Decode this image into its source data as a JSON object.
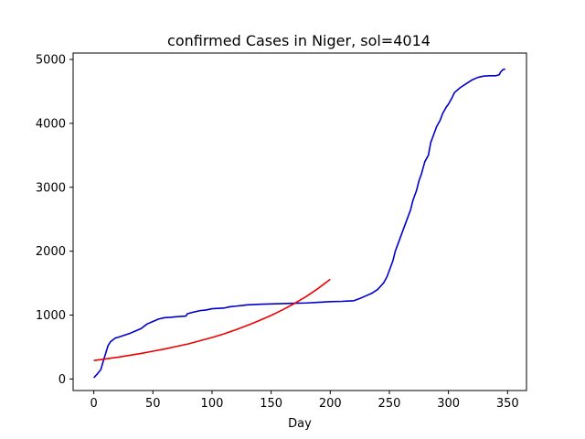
{
  "chart_data": {
    "type": "line",
    "title": "confirmed Cases in Niger, sol=4014",
    "xlabel": "Day",
    "ylabel": "",
    "xlim": [
      -17.5,
      366
    ],
    "ylim": [
      -180,
      5100
    ],
    "xticks": [
      0,
      50,
      100,
      150,
      200,
      250,
      300,
      350
    ],
    "yticks": [
      0,
      1000,
      2000,
      3000,
      4000,
      5000
    ],
    "grid": false,
    "legend": "none",
    "series": [
      {
        "color": "#0000cc",
        "x": [
          0,
          3,
          6,
          8,
          10,
          12,
          14,
          16,
          18,
          20,
          25,
          30,
          35,
          40,
          45,
          50,
          55,
          60,
          65,
          70,
          78,
          79,
          85,
          90,
          95,
          100,
          110,
          115,
          120,
          125,
          130,
          140,
          150,
          160,
          170,
          180,
          190,
          200,
          210,
          220,
          225,
          230,
          235,
          240,
          245,
          248,
          250,
          253,
          255,
          258,
          260,
          263,
          265,
          268,
          270,
          273,
          275,
          277,
          280,
          283,
          285,
          287,
          290,
          293,
          295,
          298,
          300,
          303,
          305,
          310,
          315,
          320,
          325,
          330,
          335,
          340,
          343,
          344,
          346,
          348
        ],
        "y": [
          20,
          80,
          150,
          280,
          400,
          520,
          580,
          610,
          640,
          650,
          680,
          710,
          750,
          790,
          860,
          900,
          940,
          960,
          965,
          975,
          985,
          1020,
          1050,
          1070,
          1080,
          1100,
          1110,
          1130,
          1140,
          1150,
          1160,
          1170,
          1175,
          1180,
          1185,
          1190,
          1200,
          1210,
          1215,
          1225,
          1260,
          1300,
          1340,
          1400,
          1500,
          1600,
          1700,
          1850,
          2000,
          2150,
          2250,
          2400,
          2500,
          2650,
          2800,
          2950,
          3100,
          3200,
          3400,
          3500,
          3700,
          3800,
          3950,
          4050,
          4150,
          4250,
          4300,
          4400,
          4480,
          4560,
          4620,
          4680,
          4720,
          4740,
          4745,
          4745,
          4760,
          4800,
          4840,
          4850
        ]
      },
      {
        "color": "#ee0000",
        "x": [
          0,
          10,
          20,
          30,
          40,
          50,
          60,
          70,
          80,
          90,
          100,
          110,
          120,
          130,
          140,
          150,
          160,
          170,
          180,
          190,
          200
        ],
        "y": [
          290,
          315,
          340,
          370,
          400,
          435,
          470,
          510,
          550,
          600,
          650,
          705,
          770,
          840,
          915,
          995,
          1085,
          1185,
          1295,
          1420,
          1560
        ]
      }
    ]
  }
}
